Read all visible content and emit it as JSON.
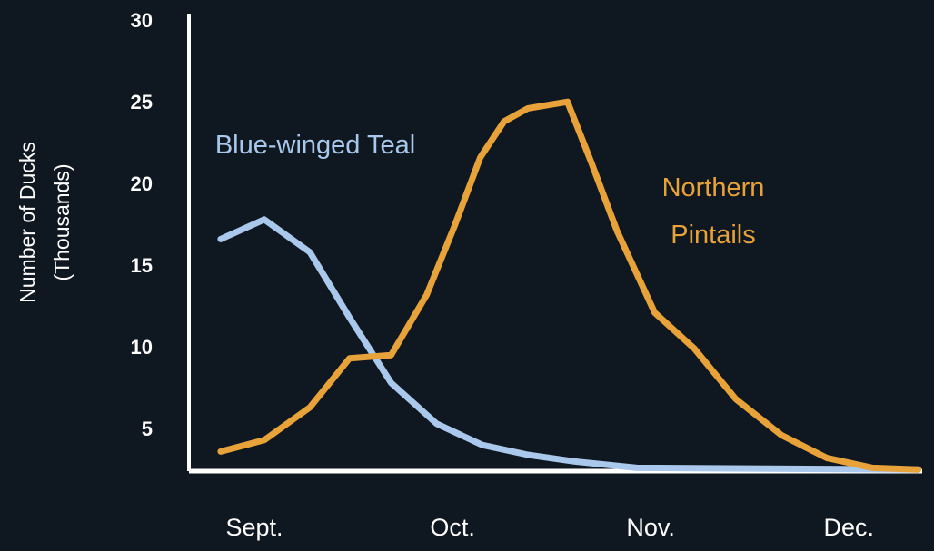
{
  "chart_data": {
    "type": "line",
    "y_label": "Number of Ducks (Thousands)",
    "xlim": [
      -0.33,
      3.37
    ],
    "xticks": [
      {
        "value": 0,
        "label": "Sept."
      },
      {
        "value": 1,
        "label": "Oct."
      },
      {
        "value": 2,
        "label": "Nov."
      },
      {
        "value": 3,
        "label": "Dec."
      }
    ],
    "ylim": [
      2.5,
      30.5
    ],
    "yticks": [
      5,
      10,
      15,
      20,
      25,
      30
    ],
    "grid": false,
    "series": [
      {
        "name": "Blue-winged Teal",
        "color": "#a9c8ec",
        "x": [
          -0.17,
          0.05,
          0.28,
          0.48,
          0.69,
          0.92,
          1.15,
          1.38,
          1.61,
          1.93,
          3.35
        ],
        "values": [
          16.7,
          17.9,
          15.9,
          11.9,
          7.9,
          5.4,
          4.1,
          3.5,
          3.1,
          2.7,
          2.6
        ]
      },
      {
        "name": "Northern Pintails",
        "color": "#e8a23a",
        "x": [
          -0.17,
          0.05,
          0.28,
          0.48,
          0.69,
          0.87,
          1.01,
          1.14,
          1.26,
          1.38,
          1.58,
          1.7,
          1.83,
          2.02,
          2.22,
          2.43,
          2.66,
          2.89,
          3.12,
          3.35
        ],
        "values": [
          3.7,
          4.4,
          6.4,
          9.4,
          9.6,
          13.3,
          17.5,
          21.7,
          23.9,
          24.7,
          25.1,
          21.4,
          17.2,
          12.2,
          10.0,
          6.9,
          4.7,
          3.3,
          2.7,
          2.6
        ]
      }
    ]
  }
}
